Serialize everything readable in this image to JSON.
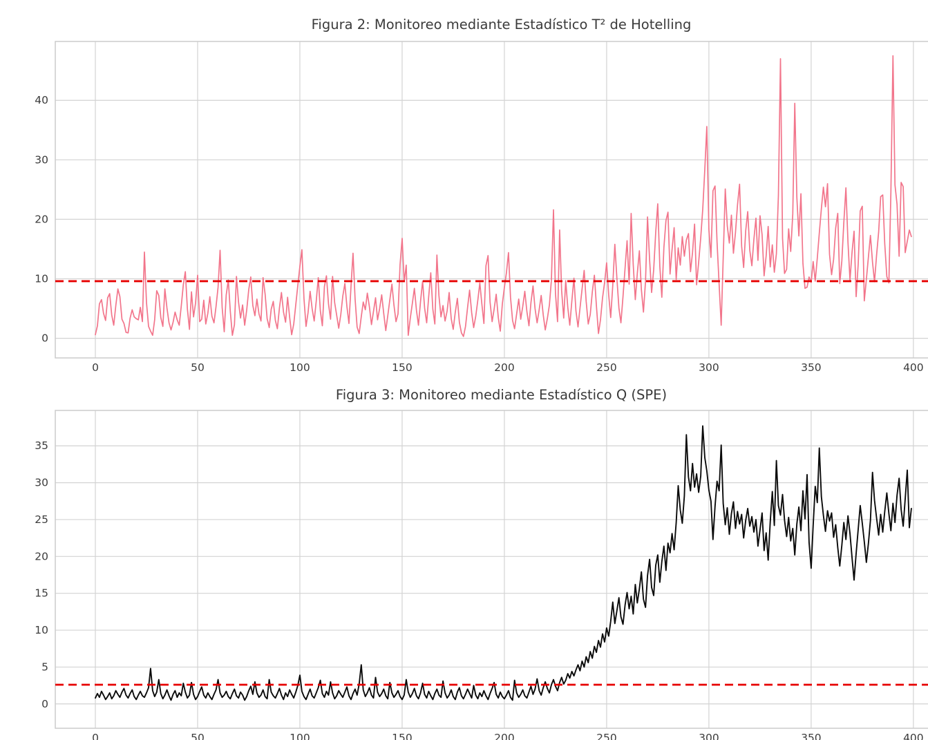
{
  "page": {
    "background": "#ffffff",
    "text_color": "#3a3a3a",
    "grid_color": "#d3d3d3",
    "border_color": "#cccccc"
  },
  "chart_data": [
    {
      "type": "line",
      "title": "Figura 2: Monitoreo mediante Estadístico T² de Hotelling",
      "xlabel": "",
      "ylabel": "",
      "xlim": [
        -19.6,
        416.6
      ],
      "ylim": [
        -3.3,
        49.9
      ],
      "x_ticks": [
        0,
        50,
        100,
        150,
        200,
        250,
        300,
        350,
        400
      ],
      "y_ticks": [
        0,
        10,
        20,
        30,
        40
      ],
      "grid": true,
      "legend": false,
      "x_start": 0,
      "x_step": 1,
      "control_limit": {
        "value": 9.6,
        "color": "#e60000",
        "line_style": "dashed"
      },
      "series": [
        {
          "name": "Estadístico T² de Hotelling",
          "color": "#f2758b",
          "line_width": 1.7,
          "values": [
            0.6,
            2.1,
            5.8,
            6.5,
            4.2,
            3.0,
            6.8,
            7.5,
            3.9,
            2.2,
            5.5,
            8.3,
            7.0,
            3.2,
            2.5,
            1.0,
            0.9,
            3.4,
            4.8,
            3.6,
            3.3,
            3.1,
            5.2,
            2.8,
            14.5,
            6.0,
            2.0,
            1.2,
            0.5,
            3.1,
            8.0,
            7.2,
            3.5,
            2.0,
            8.3,
            5.1,
            2.6,
            1.4,
            2.7,
            4.4,
            3.1,
            2.2,
            5.4,
            9.0,
            11.2,
            4.9,
            1.5,
            7.8,
            3.6,
            5.9,
            10.6,
            2.8,
            3.2,
            6.4,
            2.4,
            4.2,
            7.0,
            3.7,
            2.6,
            5.3,
            8.6,
            14.8,
            5.2,
            1.1,
            7.3,
            9.8,
            4.5,
            0.5,
            2.3,
            10.4,
            6.1,
            3.4,
            5.6,
            2.2,
            4.7,
            8.2,
            10.3,
            5.5,
            3.8,
            6.6,
            4.1,
            2.9,
            10.2,
            7.4,
            3.3,
            1.8,
            4.9,
            6.2,
            3.0,
            1.6,
            5.1,
            7.7,
            4.4,
            2.7,
            6.9,
            3.5,
            0.6,
            2.4,
            5.7,
            8.9,
            12.1,
            14.9,
            6.7,
            2.0,
            4.3,
            7.9,
            5.0,
            2.9,
            6.3,
            10.2,
            4.6,
            2.1,
            8.7,
            10.5,
            5.8,
            3.2,
            10.4,
            6.0,
            3.9,
            1.7,
            4.0,
            7.1,
            9.2,
            5.4,
            2.5,
            8.8,
            14.3,
            6.6,
            1.9,
            0.8,
            3.6,
            6.1,
            4.8,
            7.6,
            5.3,
            2.3,
            4.5,
            6.8,
            3.1,
            5.0,
            7.3,
            4.2,
            1.3,
            3.8,
            6.5,
            9.1,
            5.6,
            2.8,
            4.1,
            12.4,
            16.8,
            9.5,
            12.3,
            0.5,
            3.4,
            5.9,
            8.4,
            4.7,
            2.2,
            6.2,
            9.6,
            5.1,
            2.6,
            7.0,
            11.0,
            4.9,
            2.4,
            14.0,
            7.2,
            3.6,
            5.5,
            2.9,
            4.6,
            7.7,
            3.3,
            1.5,
            4.4,
            6.7,
            2.7,
            0.9,
            0.3,
            2.0,
            5.2,
            8.1,
            4.3,
            1.8,
            3.7,
            6.4,
            9.3,
            5.7,
            2.5,
            12.2,
            13.9,
            6.1,
            2.8,
            4.9,
            7.4,
            3.5,
            1.2,
            5.8,
            8.5,
            11.0,
            14.4,
            6.9,
            3.0,
            1.6,
            4.1,
            6.6,
            3.2,
            5.4,
            7.9,
            4.5,
            2.1,
            6.0,
            8.8,
            5.0,
            2.6,
            4.8,
            7.2,
            3.9,
            1.4,
            3.3,
            5.6,
            9.8,
            21.6,
            7.5,
            2.8,
            18.2,
            8.0,
            3.4,
            9.7,
            5.2,
            2.2,
            6.3,
            10.1,
            4.6,
            1.9,
            5.1,
            8.3,
            11.4,
            6.2,
            2.4,
            4.0,
            7.8,
            10.6,
            5.5,
            0.8,
            3.1,
            6.8,
            9.4,
            12.7,
            7.3,
            3.5,
            8.9,
            15.8,
            10.2,
            5.1,
            2.6,
            7.0,
            11.8,
            16.4,
            9.1,
            21.0,
            12.4,
            6.5,
            10.9,
            14.7,
            8.2,
            4.4,
            9.6,
            20.4,
            13.2,
            7.7,
            11.5,
            17.9,
            22.6,
            12.1,
            6.9,
            15.3,
            19.8,
            21.2,
            10.8,
            14.9,
            18.6,
            9.9,
            15.2,
            12.3,
            17.1,
            13.8,
            16.5,
            17.6,
            11.2,
            14.4,
            19.2,
            9.0,
            12.8,
            16.9,
            21.7,
            28.4,
            35.6,
            18.3,
            13.6,
            24.8,
            25.6,
            16.2,
            9.1,
            2.2,
            13.4,
            25.1,
            18.9,
            16.0,
            20.7,
            14.3,
            17.8,
            22.4,
            25.9,
            15.5,
            11.9,
            18.1,
            21.3,
            14.8,
            12.2,
            16.6,
            20.2,
            13.1,
            20.6,
            17.4,
            10.5,
            13.9,
            18.8,
            12.0,
            15.7,
            11.1,
            14.2,
            24.0,
            47.0,
            16.8,
            10.9,
            11.6,
            18.4,
            14.6,
            20.9,
            39.5,
            23.7,
            17.2,
            24.3,
            12.6,
            8.4,
            8.6,
            10.3,
            9.4,
            12.9,
            9.6,
            13.5,
            17.7,
            21.8,
            25.4,
            22.1,
            26.0,
            14.1,
            10.7,
            13.3,
            18.5,
            21.0,
            9.2,
            13.0,
            19.5,
            25.3,
            16.1,
            9.8,
            14.5,
            18.0,
            7.0,
            12.5,
            21.4,
            22.2,
            6.3,
            9.9,
            13.7,
            17.3,
            12.8,
            9.5,
            14.0,
            17.9,
            23.8,
            24.1,
            15.9,
            10.4,
            9.3,
            24.6,
            47.5,
            25.8,
            22.5,
            13.8,
            26.2,
            25.5,
            14.4,
            16.3,
            18.2,
            17.1
          ]
        }
      ]
    },
    {
      "type": "line",
      "title": "Figura 3: Monitoreo mediante Estadístico Q (SPE)",
      "xlabel": "",
      "ylabel": "",
      "xlim": [
        -19.6,
        416.6
      ],
      "ylim": [
        -3.3,
        39.8
      ],
      "x_ticks": [
        0,
        50,
        100,
        150,
        200,
        250,
        300,
        350,
        400
      ],
      "y_ticks": [
        0,
        5,
        10,
        15,
        20,
        25,
        30,
        35
      ],
      "grid": true,
      "legend": false,
      "x_start": 0,
      "x_step": 1,
      "control_limit": {
        "value": 2.6,
        "color": "#e60000",
        "line_style": "dashed"
      },
      "series": [
        {
          "name": "Estadístico Q (SPE)",
          "color": "#0a0a0a",
          "line_width": 1.9,
          "values": [
            0.8,
            1.4,
            0.9,
            1.7,
            1.2,
            0.6,
            1.0,
            1.5,
            0.7,
            1.1,
            1.8,
            1.3,
            0.9,
            1.6,
            2.1,
            1.2,
            0.8,
            1.4,
            1.9,
            1.0,
            0.6,
            1.2,
            1.7,
            1.1,
            0.9,
            1.5,
            2.2,
            4.8,
            1.8,
            1.0,
            1.6,
            3.3,
            1.4,
            0.7,
            1.2,
            1.9,
            1.1,
            0.5,
            1.3,
            1.8,
            0.9,
            1.5,
            1.1,
            2.8,
            1.6,
            0.8,
            1.2,
            2.9,
            1.3,
            0.6,
            1.0,
            1.7,
            2.3,
            1.2,
            0.8,
            1.5,
            1.0,
            0.6,
            1.3,
            1.9,
            3.3,
            1.5,
            0.9,
            1.2,
            1.7,
            1.0,
            0.7,
            1.4,
            2.0,
            1.1,
            0.8,
            1.6,
            1.2,
            0.5,
            1.0,
            1.8,
            2.4,
            1.3,
            3.0,
            1.5,
            0.9,
            1.2,
            1.9,
            1.0,
            0.7,
            3.3,
            1.6,
            1.1,
            0.8,
            1.4,
            2.1,
            1.2,
            0.6,
            1.5,
            1.0,
            1.9,
            1.3,
            0.8,
            1.6,
            2.5,
            3.9,
            1.7,
            1.0,
            0.6,
            1.3,
            2.0,
            1.1,
            0.8,
            1.5,
            2.2,
            3.2,
            1.4,
            0.9,
            1.7,
            1.2,
            3.0,
            1.5,
            0.7,
            1.1,
            1.8,
            1.3,
            0.9,
            1.6,
            2.3,
            1.1,
            0.6,
            1.4,
            2.0,
            1.2,
            2.7,
            5.3,
            1.9,
            1.0,
            1.5,
            2.2,
            1.2,
            0.8,
            3.6,
            1.6,
            1.0,
            1.4,
            2.0,
            1.1,
            0.7,
            2.9,
            1.5,
            0.9,
            1.3,
            1.8,
            1.0,
            0.6,
            1.2,
            3.3,
            1.6,
            0.9,
            1.4,
            2.1,
            1.1,
            0.7,
            1.5,
            2.8,
            1.3,
            0.8,
            1.7,
            1.1,
            0.6,
            1.4,
            2.0,
            1.2,
            0.9,
            3.1,
            1.5,
            0.8,
            1.2,
            1.9,
            1.0,
            0.6,
            1.6,
            2.2,
            1.1,
            0.7,
            1.3,
            2.0,
            1.4,
            0.8,
            2.5,
            1.2,
            0.7,
            1.5,
            1.0,
            1.8,
            1.1,
            0.6,
            1.4,
            2.1,
            2.9,
            1.3,
            0.8,
            1.6,
            1.0,
            0.7,
            1.2,
            1.8,
            0.9,
            0.5,
            3.2,
            1.5,
            0.9,
            1.3,
            1.9,
            1.1,
            0.8,
            1.6,
            2.4,
            1.3,
            2.0,
            3.4,
            1.8,
            1.2,
            2.2,
            3.0,
            2.1,
            1.5,
            2.6,
            3.3,
            2.4,
            1.8,
            2.9,
            3.6,
            2.7,
            3.2,
            4.1,
            3.5,
            4.4,
            3.8,
            4.6,
            5.3,
            4.5,
            5.8,
            5.0,
            6.4,
            5.6,
            7.1,
            6.2,
            7.8,
            7.0,
            8.6,
            7.7,
            9.5,
            8.4,
            10.3,
            9.2,
            11.2,
            13.8,
            10.9,
            12.6,
            14.4,
            11.8,
            10.8,
            13.4,
            15.1,
            12.9,
            14.6,
            12.2,
            16.2,
            13.7,
            15.6,
            17.9,
            14.2,
            13.1,
            17.4,
            19.6,
            15.8,
            14.7,
            18.8,
            20.2,
            16.5,
            19.3,
            21.4,
            18.1,
            21.8,
            20.5,
            23.1,
            20.9,
            24.6,
            29.6,
            26.3,
            24.5,
            28.2,
            36.5,
            30.8,
            28.9,
            32.6,
            29.4,
            31.2,
            28.7,
            30.9,
            37.7,
            33.4,
            31.6,
            29.0,
            27.5,
            22.3,
            26.8,
            30.2,
            28.9,
            35.1,
            27.2,
            24.3,
            26.6,
            23.0,
            25.8,
            27.4,
            23.8,
            26.1,
            24.4,
            25.7,
            22.5,
            24.9,
            26.5,
            24.1,
            25.4,
            23.3,
            25.0,
            21.4,
            23.6,
            25.9,
            20.8,
            23.2,
            19.5,
            24.7,
            28.8,
            24.2,
            33.0,
            26.9,
            25.6,
            28.4,
            24.9,
            22.7,
            25.3,
            22.1,
            23.8,
            20.2,
            24.4,
            26.7,
            23.5,
            28.9,
            25.1,
            31.1,
            21.9,
            18.4,
            24.2,
            29.5,
            27.3,
            34.7,
            28.1,
            25.6,
            23.4,
            26.2,
            24.8,
            25.9,
            22.6,
            24.3,
            21.2,
            18.7,
            21.5,
            24.6,
            22.3,
            25.5,
            23.1,
            19.8,
            16.8,
            20.4,
            23.7,
            26.9,
            24.5,
            22.0,
            19.2,
            21.8,
            24.9,
            31.4,
            27.6,
            25.2,
            22.9,
            25.7,
            23.3,
            26.1,
            28.6,
            25.8,
            23.5,
            27.2,
            24.6,
            28.3,
            30.6,
            26.4,
            24.1,
            27.8,
            31.7,
            23.9,
            26.5
          ]
        }
      ]
    }
  ]
}
